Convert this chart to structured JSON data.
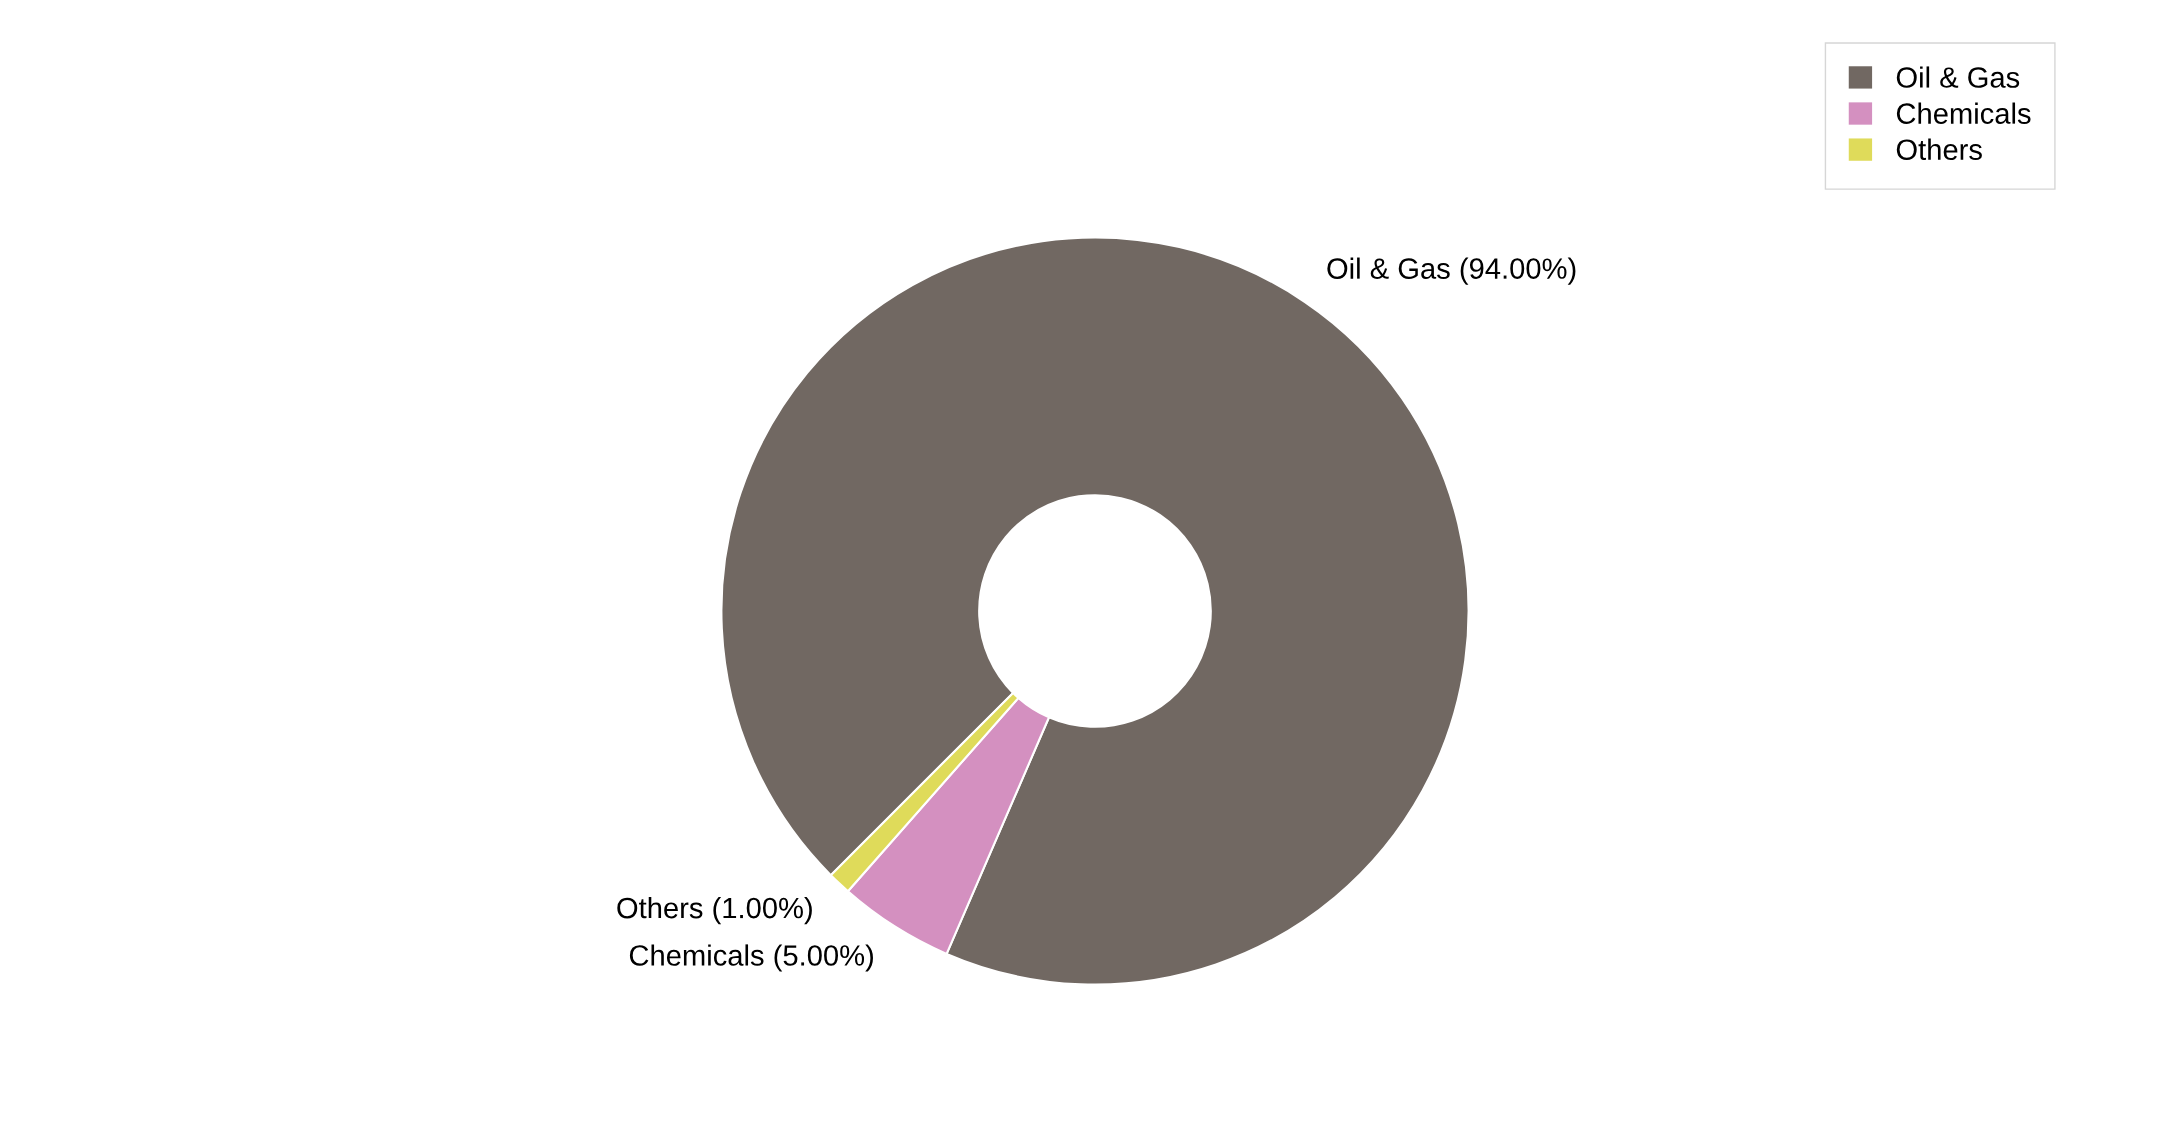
{
  "chart_data": {
    "type": "donut",
    "categories": [
      "Oil & Gas",
      "Chemicals",
      "Others"
    ],
    "values": [
      94,
      5,
      1
    ],
    "colors": [
      "#716862",
      "#d490c0",
      "#dfdb5a"
    ],
    "value_labels": [
      "Oil & Gas (94.00%)",
      "Chemicals (5.00%)",
      "Others (1.00%)"
    ],
    "legend": "top right"
  }
}
